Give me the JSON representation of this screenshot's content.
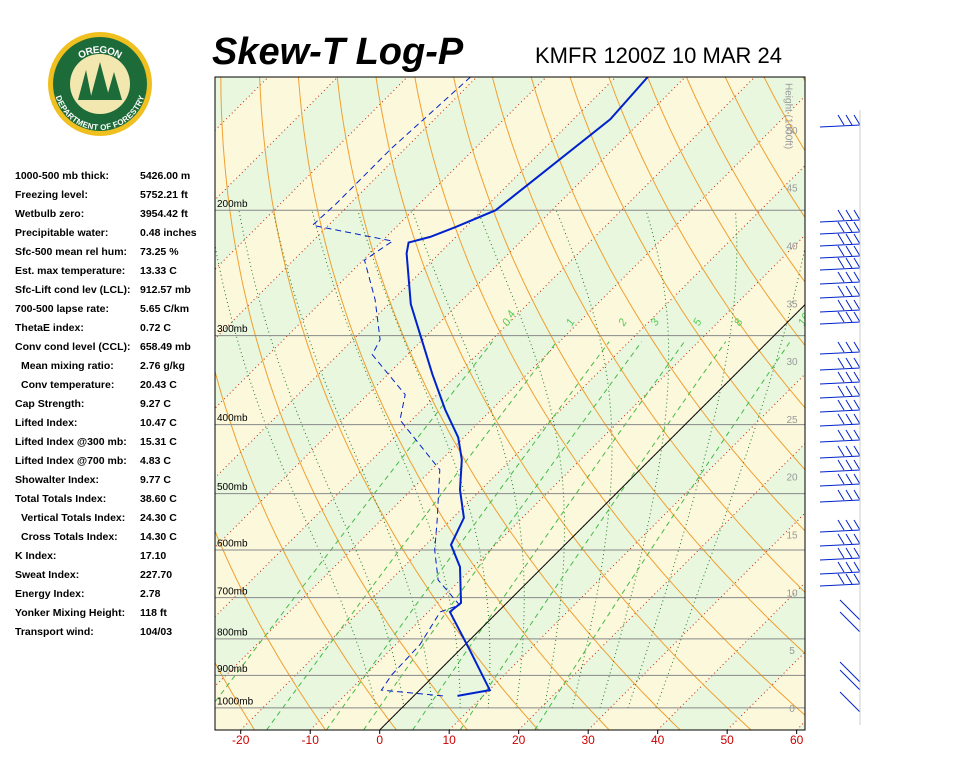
{
  "logo": {
    "top": "OREGON",
    "bottom": "DEPARTMENT OF FORESTRY"
  },
  "stats": [
    [
      "1000-500 mb thick:",
      "5426.00 m"
    ],
    [
      "Freezing level:",
      "5752.21 ft"
    ],
    [
      "Wetbulb zero:",
      "3954.42 ft"
    ],
    [
      "Precipitable water:",
      "0.48 inches"
    ],
    [
      "Sfc-500 mean rel hum:",
      "73.25 %"
    ],
    [
      "Est. max temperature:",
      "13.33 C"
    ],
    [
      "Sfc-Lift cond lev (LCL):",
      "912.57 mb"
    ],
    [
      "700-500 lapse rate:",
      "5.65 C/km"
    ],
    [
      "ThetaE index:",
      "0.72 C"
    ],
    [
      "Conv cond level (CCL):",
      "658.49 mb"
    ],
    [
      "Mean mixing ratio:",
      "2.76 g/kg"
    ],
    [
      "Conv temperature:",
      "20.43 C"
    ],
    [
      "Cap Strength:",
      "9.27 C"
    ],
    [
      "Lifted Index:",
      "10.47 C"
    ],
    [
      "Lifted Index @300 mb:",
      "15.31 C"
    ],
    [
      "Lifted Index @700 mb:",
      "4.83 C"
    ],
    [
      "Showalter Index:",
      "9.77 C"
    ],
    [
      "Total Totals Index:",
      "38.60 C"
    ],
    [
      "Vertical Totals Index:",
      "24.30 C"
    ],
    [
      "Cross Totals Index:",
      "14.30 C"
    ],
    [
      "K Index:",
      "17.10"
    ],
    [
      "Sweat Index:",
      "227.70"
    ],
    [
      "Energy Index:",
      "2.78"
    ],
    [
      "Yonker Mixing Height:",
      "118 ft"
    ],
    [
      "Transport wind:",
      "104/03"
    ]
  ],
  "chart_data": {
    "type": "skewt",
    "title": "Skew-T Log-P",
    "subtitle": "KMFR 1200Z 10 MAR 24",
    "xlim": [
      -23.7,
      61.2
    ],
    "xticks": [
      -20,
      -10,
      0,
      10,
      20,
      30,
      40,
      50,
      60
    ],
    "ylim": [
      1074,
      130
    ],
    "log_y": true,
    "yticks": [
      {
        "value": 200,
        "label": "200mb"
      },
      {
        "value": 300,
        "label": "300mb"
      },
      {
        "value": 400,
        "label": "400mb"
      },
      {
        "value": 500,
        "label": "500mb"
      },
      {
        "value": 600,
        "label": "600mb"
      },
      {
        "value": 700,
        "label": "700mb"
      },
      {
        "value": 800,
        "label": "800mb"
      },
      {
        "value": 900,
        "label": "900mb"
      },
      {
        "value": 1000,
        "label": "1000mb"
      }
    ],
    "y2label": "Height (1000ft)",
    "y2lim": [
      -1.8,
      54.7
    ],
    "y2ticks": [
      0,
      5,
      10,
      15,
      20,
      25,
      30,
      35,
      40,
      45,
      50
    ],
    "mixing_ratios": [
      0.4,
      1,
      2,
      3,
      5,
      8,
      16
    ],
    "temperature": {
      "color": "#0022cc",
      "pressure": [
        962,
        944,
        831,
        733,
        712,
        634,
        590,
        541,
        494,
        448,
        417,
        381,
        340,
        271,
        230,
        222,
        218,
        211,
        200,
        149,
        130
      ],
      "values": [
        6.3,
        10.1,
        1.6,
        -6.9,
        -6.6,
        -11.9,
        -16.4,
        -18.4,
        -23.0,
        -27.1,
        -30.8,
        -36.7,
        -43.6,
        -56.8,
        -64.7,
        -66.0,
        -63.7,
        -61.4,
        -58.1,
        -54.7,
        -55.4
      ]
    },
    "dewpoint": {
      "color": "#0022cc",
      "pressure": [
        962,
        944,
        899,
        815,
        733,
        717,
        661,
        600,
        544,
        463,
        394,
        363,
        319,
        304,
        267,
        235,
        221,
        210,
        196,
        164,
        130
      ],
      "values": [
        4.2,
        -5.5,
        -6.2,
        -6.5,
        -8.3,
        -6.5,
        -13.2,
        -18.0,
        -22.0,
        -28.8,
        -41.7,
        -44.6,
        -55.1,
        -56.1,
        -62.6,
        -69.8,
        -68.5,
        -82.3,
        -82.0,
        -82.0,
        -80.9
      ]
    }
  }
}
